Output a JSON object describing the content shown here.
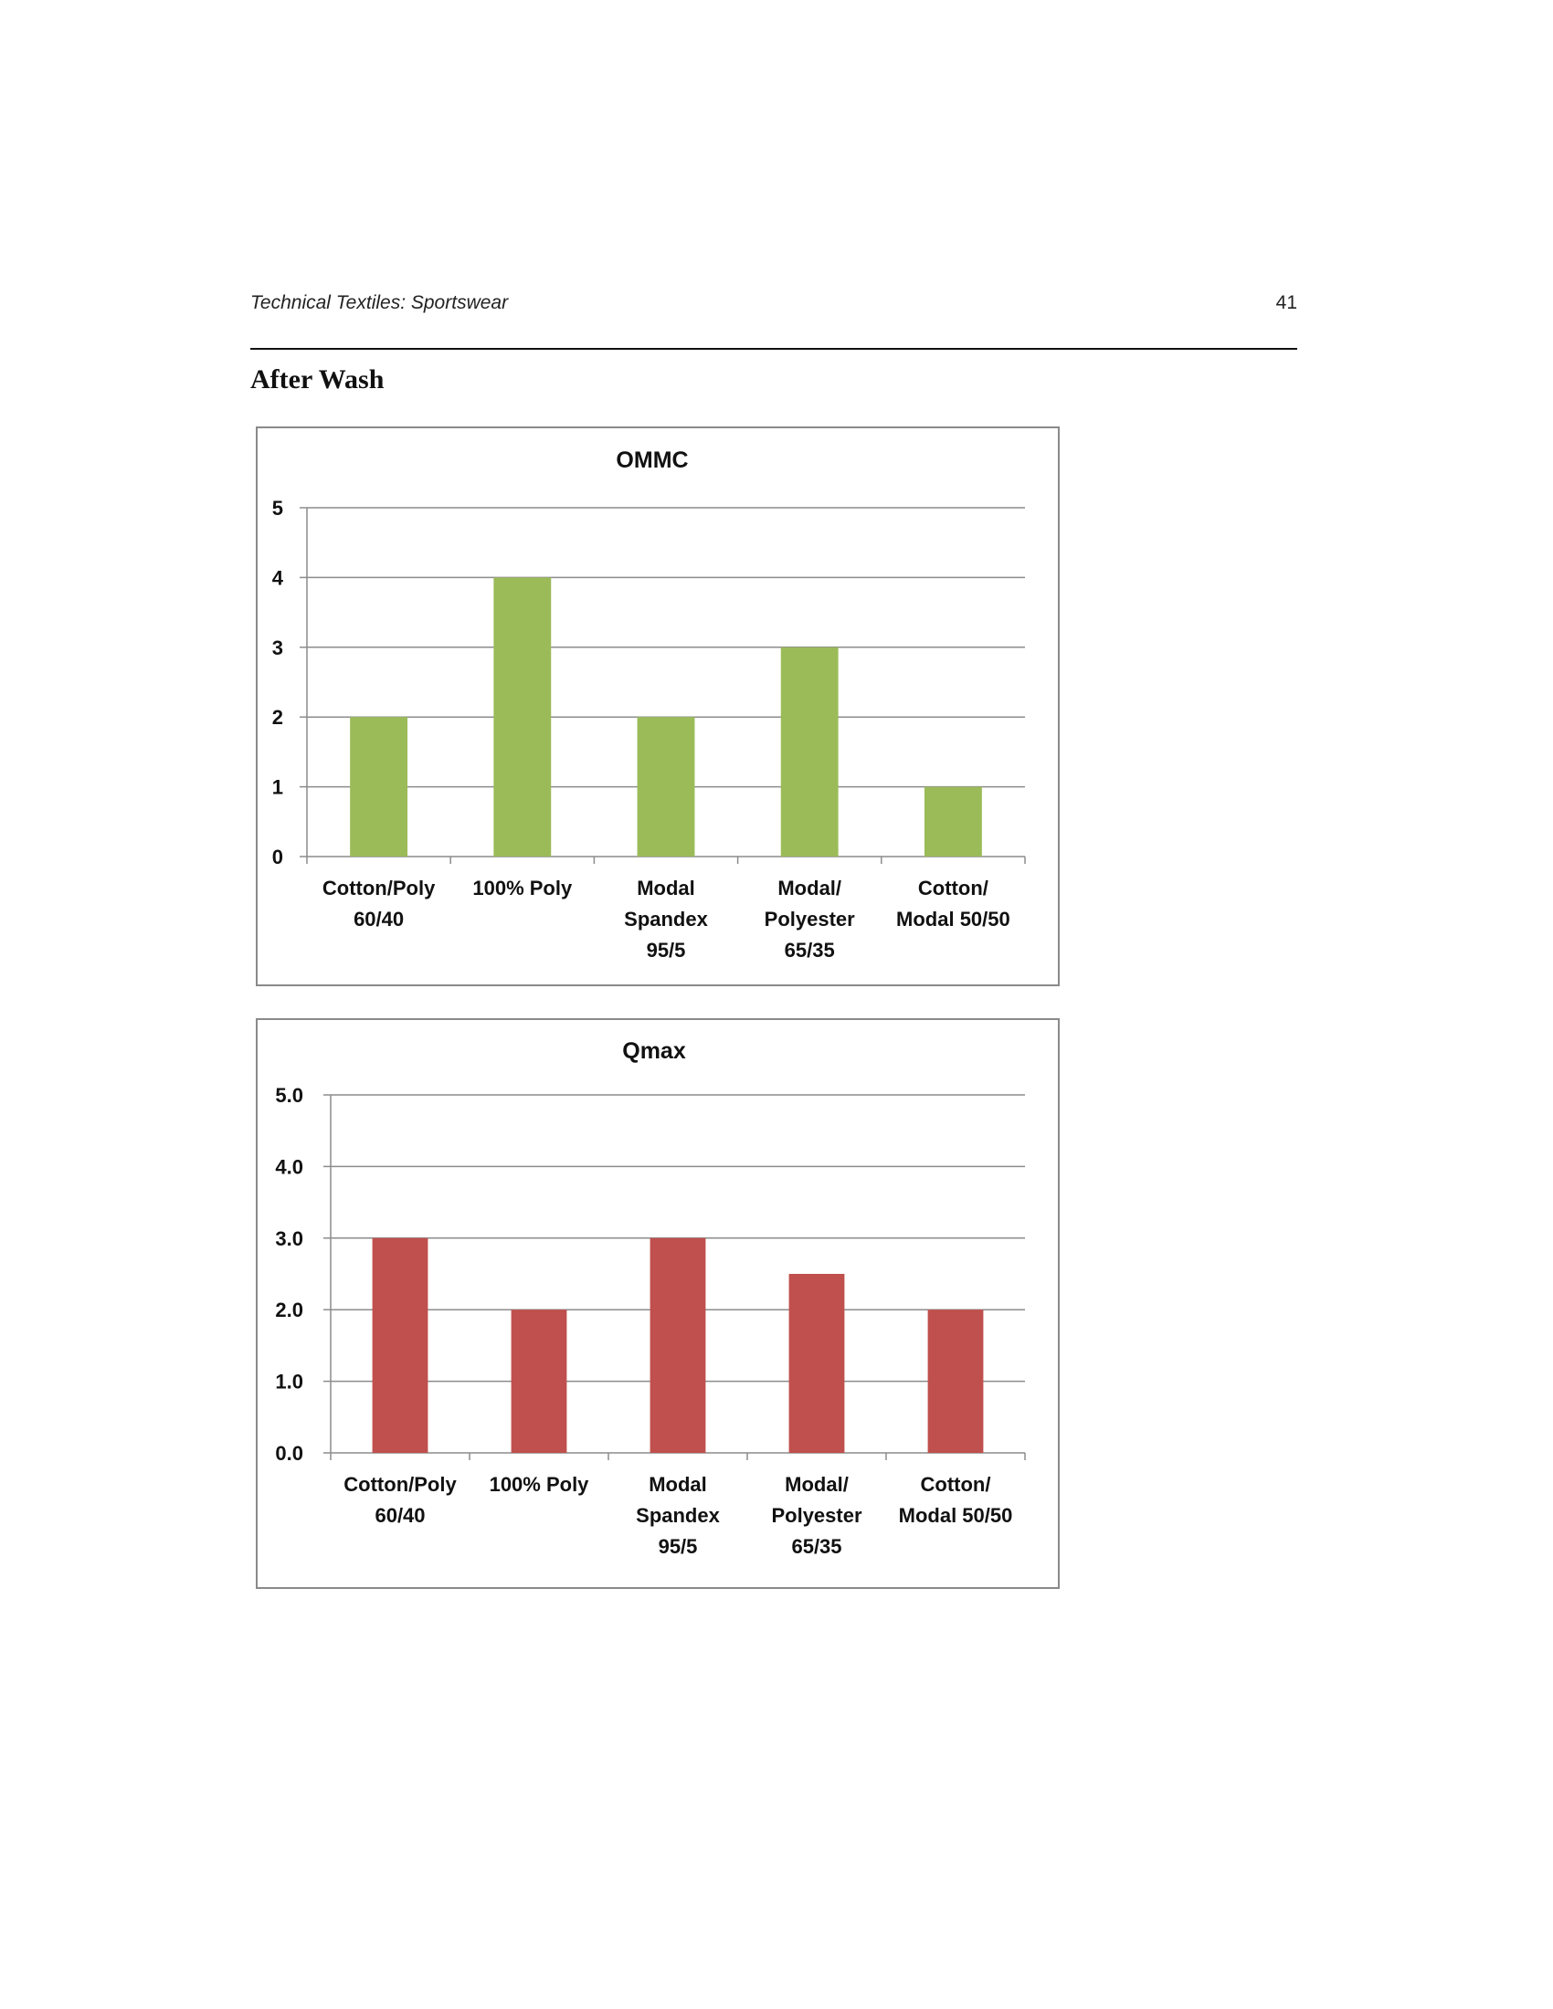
{
  "header": {
    "running_title": "Technical Textiles: Sportswear",
    "page_number": "41"
  },
  "section_heading": "After Wash",
  "colors": {
    "ommc_bar": "#9BBB59",
    "qmax_bar": "#C0504D",
    "grid": "#8c8c8c",
    "axis": "#8c8c8c"
  },
  "chart_data": [
    {
      "type": "bar",
      "title": "OMMC",
      "categories": [
        [
          "Cotton/Poly",
          "60/40"
        ],
        [
          "100% Poly"
        ],
        [
          "Modal",
          "Spandex",
          "95/5"
        ],
        [
          "Modal/",
          "Polyester",
          "65/35"
        ],
        [
          "Cotton/",
          "Modal 50/50"
        ]
      ],
      "values": [
        2,
        4,
        2,
        3,
        1
      ],
      "ylim": [
        0,
        5
      ],
      "yticks": [
        "0",
        "1",
        "2",
        "3",
        "4",
        "5"
      ],
      "grid": true,
      "legend": "none",
      "xlabel": "",
      "ylabel": ""
    },
    {
      "type": "bar",
      "title": "Qmax",
      "categories": [
        [
          "Cotton/Poly",
          "60/40"
        ],
        [
          "100% Poly"
        ],
        [
          "Modal",
          "Spandex",
          "95/5"
        ],
        [
          "Modal/",
          "Polyester",
          "65/35"
        ],
        [
          "Cotton/",
          "Modal 50/50"
        ]
      ],
      "values": [
        3.0,
        2.0,
        3.0,
        2.5,
        2.0
      ],
      "ylim": [
        0,
        5
      ],
      "yticks": [
        "0.0",
        "1.0",
        "2.0",
        "3.0",
        "4.0",
        "5.0"
      ],
      "grid": true,
      "legend": "none",
      "xlabel": "",
      "ylabel": ""
    }
  ]
}
